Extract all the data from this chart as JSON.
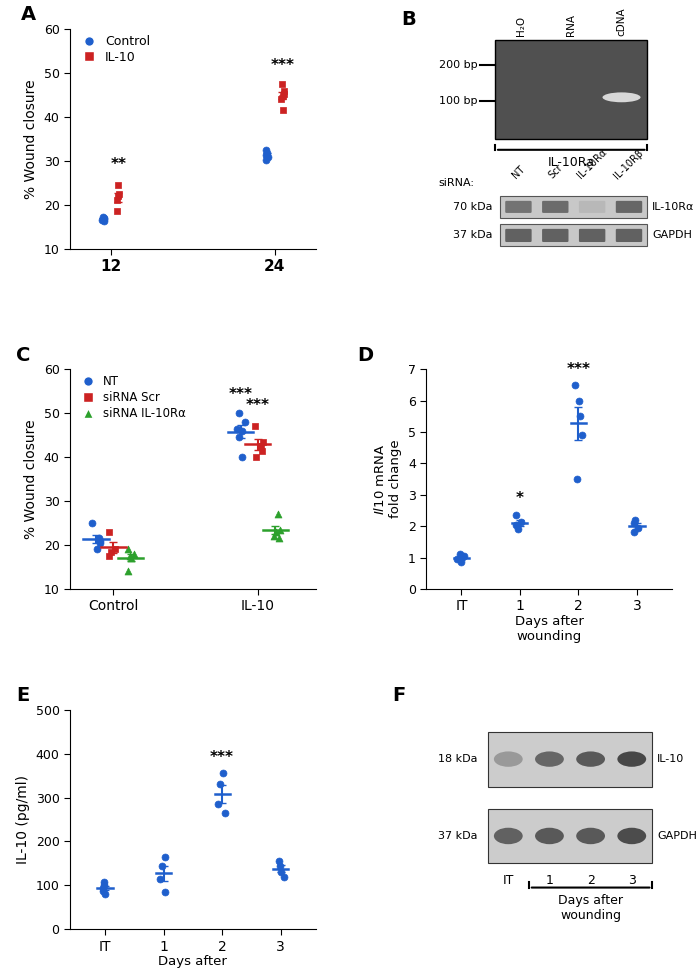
{
  "panel_A": {
    "ylabel": "% Wound closure",
    "xticks": [
      12,
      24
    ],
    "ylim": [
      10,
      60
    ],
    "yticks": [
      10,
      20,
      30,
      40,
      50,
      60
    ],
    "control_12": [
      16.2,
      16.5,
      16.8,
      17.0,
      17.3
    ],
    "il10_12": [
      18.5,
      21.0,
      22.0,
      22.5,
      24.5
    ],
    "control_24": [
      30.2,
      30.8,
      31.3,
      31.8,
      32.5
    ],
    "il10_24": [
      41.5,
      44.0,
      44.8,
      45.2,
      45.8,
      47.5
    ],
    "sig_12": "**",
    "sig_24": "***",
    "control_color": "#1f5fcc",
    "il10_color": "#cc2222"
  },
  "panel_C": {
    "ylabel": "% Wound closure",
    "xtick_labels": [
      "Control",
      "IL-10"
    ],
    "ylim": [
      10,
      60
    ],
    "yticks": [
      10,
      20,
      30,
      40,
      50,
      60
    ],
    "nt_control": [
      19.0,
      20.5,
      21.0,
      21.5,
      25.0
    ],
    "sirna_scr_control": [
      17.5,
      18.5,
      19.0,
      23.0
    ],
    "sirna_il10ra_control": [
      14.0,
      17.0,
      17.5,
      18.0,
      19.0
    ],
    "nt_il10": [
      40.0,
      44.5,
      46.0,
      46.5,
      48.0,
      50.0
    ],
    "sirna_scr_il10": [
      40.0,
      41.5,
      42.5,
      43.5,
      47.0
    ],
    "sirna_il10ra_il10": [
      21.5,
      22.0,
      23.0,
      23.5,
      27.0
    ],
    "sig_nt": "***",
    "sig_scr": "***",
    "nt_color": "#1f5fcc",
    "scr_color": "#cc2222",
    "il10ra_color": "#2ca02c"
  },
  "panel_D": {
    "ylabel": "Il10 mRNA fold change",
    "xlabel": "Days after\nwounding",
    "ylim": [
      0,
      7
    ],
    "yticks": [
      0,
      1,
      2,
      3,
      4,
      5,
      6,
      7
    ],
    "it": [
      0.85,
      0.95,
      1.05,
      1.1
    ],
    "day1": [
      1.9,
      2.05,
      2.15,
      2.35
    ],
    "day2": [
      3.5,
      4.9,
      5.5,
      6.0,
      6.5
    ],
    "day3": [
      1.8,
      1.95,
      2.1,
      2.2
    ],
    "sig_day1": "*",
    "sig_day2": "***",
    "color": "#1f5fcc"
  },
  "panel_E": {
    "ylabel": "IL-10 (pg/ml)",
    "xlabel": "Days after\nwounding",
    "ylim": [
      0,
      500
    ],
    "yticks": [
      0,
      100,
      200,
      300,
      400,
      500
    ],
    "it": [
      80,
      88,
      95,
      100,
      108
    ],
    "day1": [
      85,
      115,
      145,
      165
    ],
    "day2": [
      265,
      285,
      330,
      355
    ],
    "day3": [
      120,
      130,
      145,
      155
    ],
    "sig_day2": "***",
    "color": "#1f5fcc"
  },
  "colors": {
    "blue": "#1f5fcc",
    "red": "#cc2222",
    "green": "#2ca02c"
  }
}
